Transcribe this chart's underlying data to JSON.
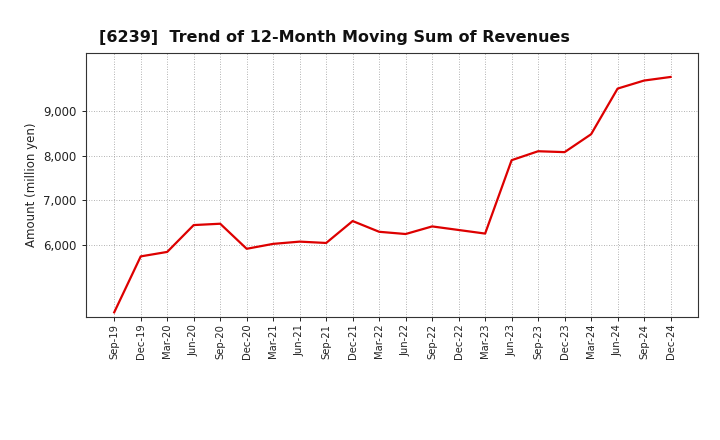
{
  "title": "[6239]  Trend of 12-Month Moving Sum of Revenues",
  "ylabel": "Amount (million yen)",
  "line_color": "#dd0000",
  "line_width": 1.6,
  "background_color": "#ffffff",
  "grid_color": "#999999",
  "ylim": [
    4400,
    10300
  ],
  "labels": [
    "Sep-19",
    "Dec-19",
    "Mar-20",
    "Jun-20",
    "Sep-20",
    "Dec-20",
    "Mar-21",
    "Jun-21",
    "Sep-21",
    "Dec-21",
    "Mar-22",
    "Jun-22",
    "Sep-22",
    "Dec-22",
    "Mar-23",
    "Jun-23",
    "Sep-23",
    "Dec-23",
    "Mar-24",
    "Jun-24",
    "Sep-24",
    "Dec-24"
  ],
  "values": [
    4500,
    5750,
    5850,
    6450,
    6480,
    5920,
    6030,
    6080,
    6050,
    6540,
    6300,
    6250,
    6420,
    6340,
    6260,
    7900,
    8100,
    8080,
    8480,
    9500,
    9680,
    9760
  ]
}
